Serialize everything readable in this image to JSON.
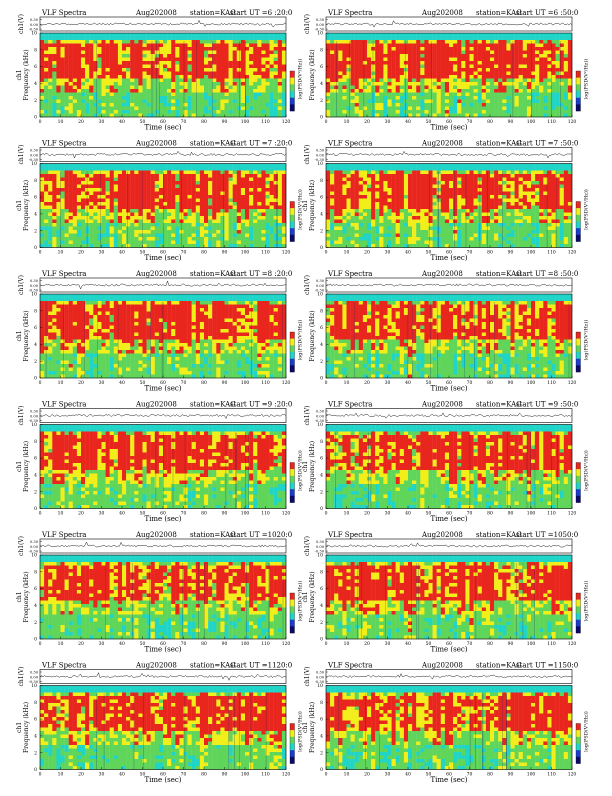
{
  "colors": {
    "background": "#ffffff",
    "spectrogram_red": "#e8261e",
    "spectrogram_yellow": "#f2ee1a",
    "spectrogram_green": "#5fd55a",
    "spectrogram_cyan": "#20d4c8",
    "spectrogram_blue": "#1a3cd0",
    "spectrogram_navy": "#0a0a6e"
  },
  "chart_data": [
    {
      "type": "heatmap",
      "title": "VLF Spectra",
      "date": "Aug202008",
      "station": "station=KAG",
      "start": "start  UT =6 :20:0",
      "ylabel_trace": "ch1(V)",
      "ylabel": "Frequency (kHz)",
      "ylabel_side": "ch1",
      "xlabel": "Time (sec)",
      "colorbar_label": "log(PSD(V²/Hz))",
      "trace_ticks": [
        "0.30",
        "0.00",
        "-0.30"
      ],
      "x_ticks": [
        "0",
        "10",
        "20",
        "30",
        "40",
        "50",
        "60",
        "70",
        "80",
        "90",
        "100",
        "110",
        "120"
      ],
      "y_ticks": [
        "0",
        "2",
        "4",
        "6",
        "8",
        "10"
      ],
      "xlim": [
        0,
        120
      ],
      "ylim": [
        0,
        10
      ]
    },
    {
      "type": "heatmap",
      "title": "VLF Spectra",
      "date": "Aug202008",
      "station": "station=KAG",
      "start": "start  UT =6 :50:0",
      "ylabel_trace": "ch1(V)",
      "ylabel": "Frequency (kHz)",
      "ylabel_side": "",
      "xlabel": "Time (sec)",
      "colorbar_label": "log(PSD(V²/Hz))",
      "trace_ticks": [
        "0.30",
        "0.00",
        "-0.30"
      ],
      "x_ticks": [
        "0",
        "10",
        "20",
        "30",
        "40",
        "50",
        "60",
        "70",
        "80",
        "90",
        "100",
        "110",
        "120"
      ],
      "y_ticks": [
        "0",
        "2",
        "4",
        "6",
        "8",
        "10"
      ],
      "xlim": [
        0,
        120
      ],
      "ylim": [
        0,
        10
      ]
    },
    {
      "type": "heatmap",
      "title": "VLF Spectra",
      "date": "Aug202008",
      "station": "station=KAG",
      "start": "start  UT =7 :20:0",
      "ylabel_trace": "ch1(V)",
      "ylabel": "Frequency (kHz)",
      "ylabel_side": "ch1",
      "xlabel": "Time (sec)",
      "colorbar_label": "log(PSD(V²/Hz))",
      "trace_ticks": [
        "0.30",
        "0.00",
        "-0.30"
      ],
      "x_ticks": [
        "0",
        "10",
        "20",
        "30",
        "40",
        "50",
        "60",
        "70",
        "80",
        "90",
        "100",
        "110",
        "120"
      ],
      "y_ticks": [
        "0",
        "2",
        "4",
        "6",
        "8",
        "10"
      ],
      "xlim": [
        0,
        120
      ],
      "ylim": [
        0,
        10
      ]
    },
    {
      "type": "heatmap",
      "title": "VLF Spectra",
      "date": "Aug202008",
      "station": "station=KAG",
      "start": "start  UT =7 :50:0",
      "ylabel_trace": "ch1(V)",
      "ylabel": "Frequency (kHz)",
      "ylabel_side": "ch1",
      "xlabel": "Time (sec)",
      "colorbar_label": "log(PSD(V²/Hz))",
      "trace_ticks": [
        "0.30",
        "0.00",
        "-0.30"
      ],
      "x_ticks": [
        "0",
        "10",
        "20",
        "30",
        "40",
        "50",
        "60",
        "70",
        "80",
        "90",
        "100",
        "110",
        "120"
      ],
      "y_ticks": [
        "0",
        "2",
        "4",
        "6",
        "8",
        "10"
      ],
      "xlim": [
        0,
        120
      ],
      "ylim": [
        0,
        10
      ]
    },
    {
      "type": "heatmap",
      "title": "VLF Spectra",
      "date": "Aug202008",
      "station": "station=KAG",
      "start": "start  UT =8 :20:0",
      "ylabel_trace": "ch1(V)",
      "ylabel": "Frequency (kHz)",
      "ylabel_side": "ch1",
      "xlabel": "Time (sec)",
      "colorbar_label": "log(PSD(V²/Hz))",
      "trace_ticks": [
        "0.30",
        "0.00",
        "-0.30"
      ],
      "x_ticks": [
        "0",
        "10",
        "20",
        "30",
        "40",
        "50",
        "60",
        "70",
        "80",
        "90",
        "100",
        "110",
        "120"
      ],
      "y_ticks": [
        "0",
        "2",
        "4",
        "6",
        "8",
        "10"
      ],
      "xlim": [
        0,
        120
      ],
      "ylim": [
        0,
        10
      ]
    },
    {
      "type": "heatmap",
      "title": "VLF Spectra",
      "date": "Aug202008",
      "station": "station=KAG",
      "start": "start  UT =8 :50:0",
      "ylabel_trace": "ch1(V)",
      "ylabel": "Frequency (kHz)",
      "ylabel_side": "",
      "xlabel": "Time (sec)",
      "colorbar_label": "log(PSD(V²/Hz))",
      "trace_ticks": [
        "0.30",
        "0.00",
        "-0.30"
      ],
      "x_ticks": [
        "0",
        "10",
        "20",
        "30",
        "40",
        "50",
        "60",
        "70",
        "80",
        "90",
        "100",
        "110",
        "120"
      ],
      "y_ticks": [
        "0",
        "2",
        "4",
        "6",
        "8",
        "10"
      ],
      "xlim": [
        0,
        120
      ],
      "ylim": [
        0,
        10
      ]
    },
    {
      "type": "heatmap",
      "title": "VLF Spectra",
      "date": "Aug202008",
      "station": "station=KAG",
      "start": "start  UT =9 :20:0",
      "ylabel_trace": "ch1(V)",
      "ylabel": "Frequency (kHz)",
      "ylabel_side": "ch1",
      "xlabel": "Time (sec)",
      "colorbar_label": "log(PSD(V²/Hz))",
      "trace_ticks": [
        "0.30",
        "0.00",
        "-0.30"
      ],
      "x_ticks": [
        "0",
        "10",
        "20",
        "30",
        "40",
        "50",
        "60",
        "70",
        "80",
        "90",
        "100",
        "110",
        "120"
      ],
      "y_ticks": [
        "0",
        "2",
        "4",
        "6",
        "8",
        "10"
      ],
      "xlim": [
        0,
        120
      ],
      "ylim": [
        0,
        10
      ]
    },
    {
      "type": "heatmap",
      "title": "VLF Spectra",
      "date": "Aug202008",
      "station": "station=KAG",
      "start": "start  UT =9 :50:0",
      "ylabel_trace": "ch1(V)",
      "ylabel": "Frequency (kHz)",
      "ylabel_side": "ch1",
      "xlabel": "Time (sec)",
      "colorbar_label": "log(PSD(V²/Hz))",
      "trace_ticks": [
        "0.30",
        "0.00",
        "-0.30"
      ],
      "x_ticks": [
        "0",
        "10",
        "20",
        "30",
        "40",
        "50",
        "60",
        "70",
        "80",
        "90",
        "100",
        "110",
        "120"
      ],
      "y_ticks": [
        "0",
        "2",
        "4",
        "6",
        "8",
        "10"
      ],
      "xlim": [
        0,
        120
      ],
      "ylim": [
        0,
        10
      ]
    },
    {
      "type": "heatmap",
      "title": "VLF Spectra",
      "date": "Aug202008",
      "station": "station=KAG",
      "start": "start  UT =1020:0",
      "ylabel_trace": "ch1(V)",
      "ylabel": "Frequency (kHz)",
      "ylabel_side": "ch1",
      "xlabel": "Time (sec)",
      "colorbar_label": "log(PSD(V²/Hz))",
      "trace_ticks": [
        "0.30",
        "0.00",
        "-0.30"
      ],
      "x_ticks": [
        "0",
        "10",
        "20",
        "30",
        "40",
        "50",
        "60",
        "70",
        "80",
        "90",
        "100",
        "110",
        "120"
      ],
      "y_ticks": [
        "0",
        "2",
        "4",
        "6",
        "8",
        "10"
      ],
      "xlim": [
        0,
        120
      ],
      "ylim": [
        0,
        10
      ]
    },
    {
      "type": "heatmap",
      "title": "VLF Spectra",
      "date": "Aug202008",
      "station": "station=KAG",
      "start": "start  UT =1050:0",
      "ylabel_trace": "ch1(V)",
      "ylabel": "Frequency (kHz)",
      "ylabel_side": "ch1",
      "xlabel": "Time (sec)",
      "colorbar_label": "log(PSD(V²/Hz))",
      "trace_ticks": [
        "0.30",
        "0.00",
        "-0.30"
      ],
      "x_ticks": [
        "0",
        "10",
        "20",
        "30",
        "40",
        "50",
        "60",
        "70",
        "80",
        "90",
        "100",
        "110",
        "120"
      ],
      "y_ticks": [
        "0",
        "2",
        "4",
        "6",
        "8",
        "10"
      ],
      "xlim": [
        0,
        120
      ],
      "ylim": [
        0,
        10
      ]
    },
    {
      "type": "heatmap",
      "title": "VLF Spectra",
      "date": "Aug202008",
      "station": "station=KAG",
      "start": "start  UT =1120:0",
      "ylabel_trace": "ch1(V)",
      "ylabel": "Frequency (kHz)",
      "ylabel_side": "ch1",
      "xlabel": "Time (sec)",
      "colorbar_label": "log(PSD(V²/Hz))",
      "trace_ticks": [
        "0.30",
        "0.00",
        "-0.30"
      ],
      "x_ticks": [
        "0",
        "10",
        "20",
        "30",
        "40",
        "50",
        "60",
        "70",
        "80",
        "90",
        "100",
        "110",
        "120"
      ],
      "y_ticks": [
        "0",
        "2",
        "4",
        "6",
        "8",
        "10"
      ],
      "xlim": [
        0,
        120
      ],
      "ylim": [
        0,
        10
      ]
    },
    {
      "type": "heatmap",
      "title": "VLF Spectra",
      "date": "Aug202008",
      "station": "station=KAG",
      "start": "start  UT =1150:0",
      "ylabel_trace": "ch1(V)",
      "ylabel": "Frequency (kHz)",
      "ylabel_side": "ch1",
      "xlabel": "Time (sec)",
      "colorbar_label": "log(PSD(V²/Hz))",
      "trace_ticks": [
        "0.30",
        "0.00",
        "-0.30"
      ],
      "x_ticks": [
        "0",
        "10",
        "20",
        "30",
        "40",
        "50",
        "60",
        "70",
        "80",
        "90",
        "100",
        "110",
        "120"
      ],
      "y_ticks": [
        "0",
        "2",
        "4",
        "6",
        "8",
        "10"
      ],
      "xlim": [
        0,
        120
      ],
      "ylim": [
        0,
        10
      ]
    }
  ]
}
